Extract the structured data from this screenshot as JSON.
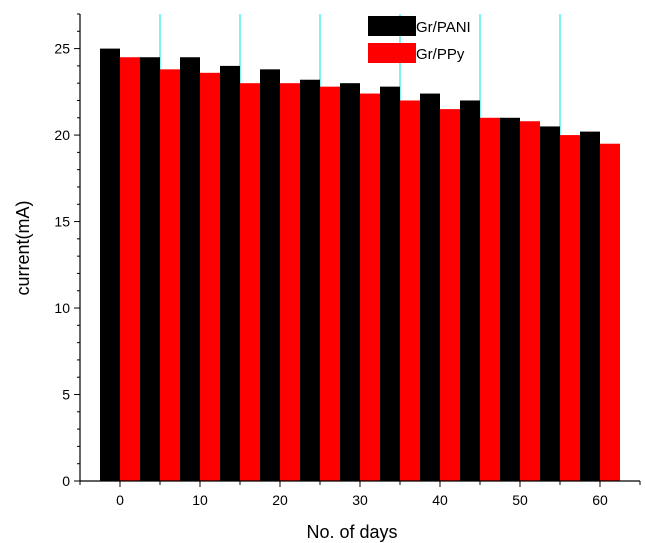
{
  "chart_data": {
    "type": "bar",
    "title": "",
    "xlabel": "No. of days",
    "ylabel": "current(mA)",
    "xlim": [
      -5,
      65
    ],
    "ylim": [
      0,
      27
    ],
    "x": [
      0,
      5,
      10,
      15,
      20,
      25,
      30,
      35,
      40,
      45,
      50,
      55,
      60
    ],
    "x_ticks": [
      0,
      10,
      20,
      30,
      40,
      50,
      60
    ],
    "y_ticks": [
      0,
      5,
      10,
      15,
      20,
      25
    ],
    "series": [
      {
        "name": "Gr/PANI",
        "color": "#000000",
        "values": [
          25.0,
          24.5,
          24.5,
          24.0,
          23.8,
          23.2,
          23.0,
          22.8,
          22.4,
          22.0,
          21.0,
          20.5,
          20.2
        ]
      },
      {
        "name": "Gr/PPy",
        "color": "#ff0000",
        "values": [
          24.5,
          23.8,
          23.6,
          23.0,
          23.0,
          22.8,
          22.4,
          22.0,
          21.5,
          21.0,
          20.8,
          20.0,
          19.5
        ]
      }
    ],
    "separator_lines_at": [
      5,
      15,
      25,
      35,
      45,
      55
    ],
    "separator_color": "#00e5ee",
    "legend_position": "top-right"
  }
}
